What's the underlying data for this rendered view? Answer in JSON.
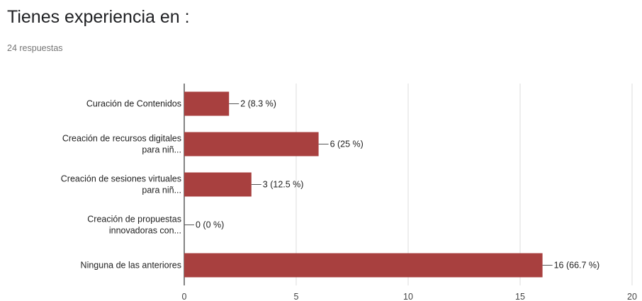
{
  "title": "Tienes experiencia en :",
  "responses": "24 respuestas",
  "colors": {
    "bar": "#a8403f",
    "grid": "#dddddd",
    "axis": "#333333"
  },
  "chart_data": {
    "type": "bar",
    "orientation": "horizontal",
    "categories": [
      [
        "Curación de Contenidos"
      ],
      [
        "Creación de recursos digitales",
        "para niñ..."
      ],
      [
        "Creación de sesiones virtuales",
        "para niñ..."
      ],
      [
        "Creación de propuestas",
        "innovadoras con..."
      ],
      [
        "Ninguna de las anteriores"
      ]
    ],
    "values": [
      2,
      6,
      3,
      0,
      16
    ],
    "labels": [
      "2 (8.3 %)",
      "6 (25 %)",
      "3 (12.5 %)",
      "0 (0 %)",
      "16 (66.7 %)"
    ],
    "xlim": [
      0,
      20
    ],
    "xticks": [
      0,
      5,
      10,
      15,
      20
    ],
    "grid": true,
    "legend": "none"
  }
}
